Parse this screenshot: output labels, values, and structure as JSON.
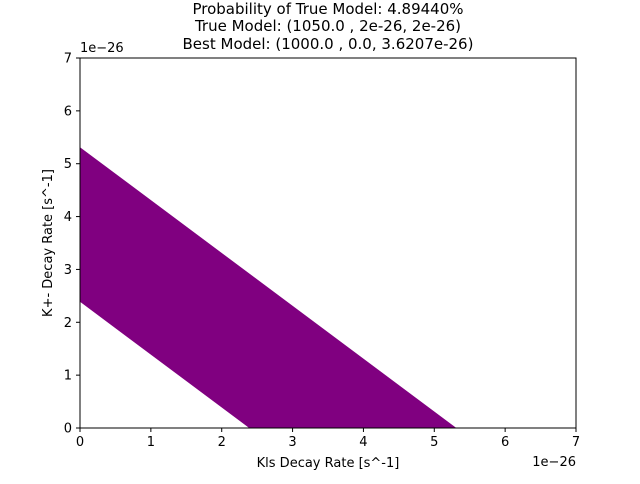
{
  "title_lines": [
    "Probability of True Model: 4.89440%",
    "True Model: (1050.0 , 2e-26, 2e-26)",
    "Best Model: (1000.0 , 0.0, 3.6207e-26)"
  ],
  "chart_data": {
    "type": "area",
    "title": "Probability of True Model: 4.89440%\nTrue Model: (1050.0 , 2e-26, 2e-26)\nBest Model: (1000.0 , 0.0, 3.6207e-26)",
    "xlabel": "Kls Decay Rate [s^-1]",
    "ylabel": "K+- Decay Rate [s^-1]",
    "xlim": [
      0,
      7
    ],
    "ylim": [
      0,
      7
    ],
    "x_ticks": [
      "0",
      "1",
      "2",
      "3",
      "4",
      "5",
      "6",
      "7"
    ],
    "y_ticks": [
      "0",
      "1",
      "2",
      "3",
      "4",
      "5",
      "6",
      "7"
    ],
    "x_offset_label": "1e−26",
    "y_offset_label": "1e−26",
    "grid": false,
    "legend": "none",
    "region": {
      "description": "band between lines x + y = lower and x + y = upper, clipped to x>=0, y>=0",
      "lower_sum": 2.4,
      "upper_sum": 5.3,
      "color": "#800080"
    }
  }
}
